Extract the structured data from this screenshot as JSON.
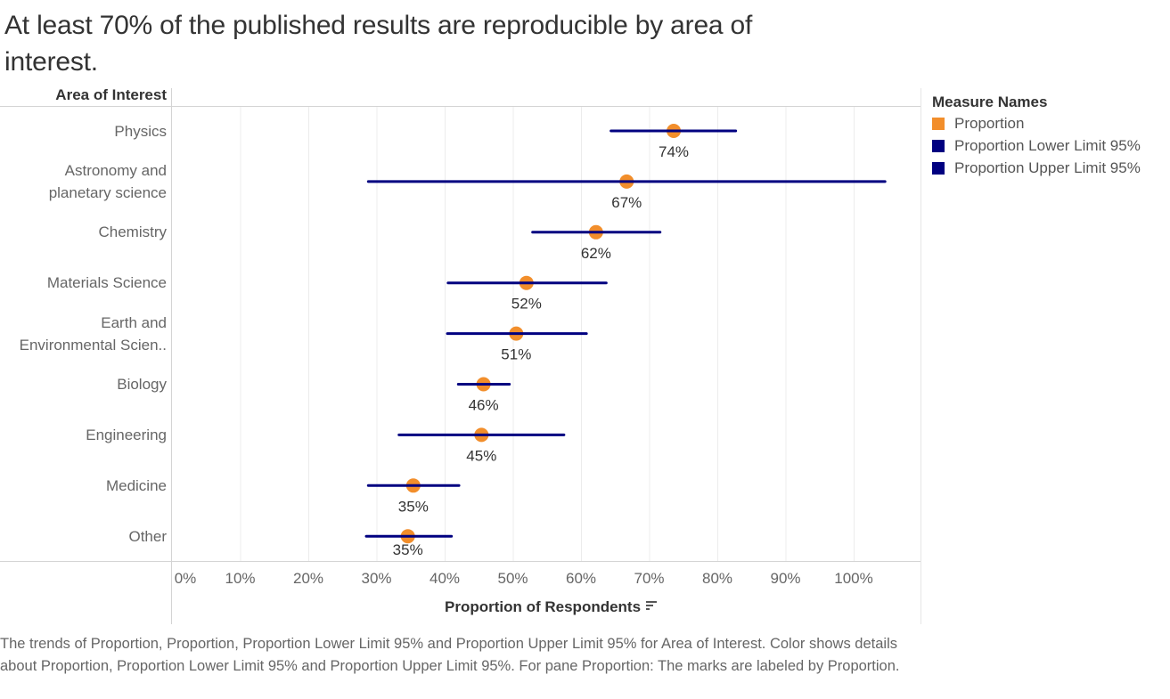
{
  "title": "At least 70% of the published results are reproducible by area of interest.",
  "row_header": "Area of Interest",
  "legend": {
    "title": "Measure Names",
    "items": [
      {
        "label": "Proportion",
        "color": "#F28E2B"
      },
      {
        "label": "Proportion Lower Limit 95%",
        "color": "#000080"
      },
      {
        "label": "Proportion Upper Limit 95%",
        "color": "#000080"
      }
    ]
  },
  "caption": "The trends of Proportion, Proportion, Proportion Lower Limit 95% and Proportion Upper Limit 95% for Area of Interest. Color shows details about Proportion, Proportion Lower Limit 95% and Proportion Upper Limit 95%.  For pane Proportion: The marks are labeled by Proportion.",
  "chart_data": {
    "type": "scatter",
    "subtype": "dot-with-confidence-interval",
    "title": "At least 70% of the published results are reproducible by area of interest.",
    "xlabel": "Proportion of Respondents",
    "ylabel": "Area of Interest",
    "xlim": [
      0,
      110
    ],
    "x_ticks": [
      "0%",
      "10%",
      "20%",
      "30%",
      "40%",
      "50%",
      "60%",
      "70%",
      "80%",
      "90%",
      "100%"
    ],
    "x_tick_values": [
      0,
      10,
      20,
      30,
      40,
      50,
      60,
      70,
      80,
      90,
      100
    ],
    "grid": "vertical",
    "legend_position": "right",
    "categories": [
      [
        "Physics"
      ],
      [
        "Astronomy and",
        "planetary science"
      ],
      [
        "Chemistry"
      ],
      [
        "Materials Science"
      ],
      [
        "Earth and",
        "Environmental Scien.."
      ],
      [
        "Biology"
      ],
      [
        "Engineering"
      ],
      [
        "Medicine"
      ],
      [
        "Other"
      ]
    ],
    "series": [
      {
        "name": "Proportion",
        "color": "#F28E2B",
        "values": [
          73.6,
          66.7,
          62.2,
          52.0,
          50.5,
          45.7,
          45.4,
          35.4,
          34.6
        ],
        "labels": [
          "74%",
          "67%",
          "62%",
          "52%",
          "51%",
          "46%",
          "45%",
          "35%",
          "35%"
        ]
      },
      {
        "name": "Proportion Lower Limit 95%",
        "color": "#000080",
        "values": [
          64.4,
          28.8,
          52.9,
          40.5,
          40.4,
          42.0,
          33.3,
          28.8,
          28.5
        ]
      },
      {
        "name": "Proportion Upper Limit 95%",
        "color": "#000080",
        "values": [
          82.7,
          104.6,
          71.6,
          63.7,
          60.8,
          49.5,
          57.5,
          42.1,
          41.0
        ]
      }
    ]
  }
}
